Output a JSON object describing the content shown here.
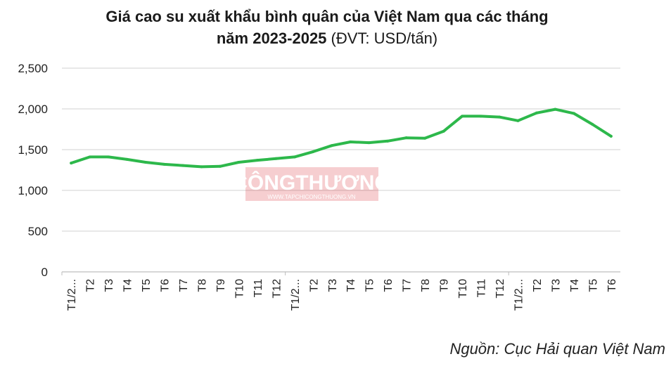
{
  "chart_data": {
    "type": "line",
    "title": "Giá cao su xuất khẩu bình quân của Việt Nam qua các tháng",
    "title_line2": "năm 2023-2025",
    "unit": "(ĐVT: USD/tấn)",
    "categories": [
      "T1/2...",
      "T2",
      "T3",
      "T4",
      "T5",
      "T6",
      "T7",
      "T8",
      "T9",
      "T10",
      "T11",
      "T12",
      "T1/2...",
      "T2",
      "T3",
      "T4",
      "T5",
      "T6",
      "T7",
      "T8",
      "T9",
      "T10",
      "T11",
      "T12",
      "T1/2...",
      "T2",
      "T3",
      "T4",
      "T5",
      "T6"
    ],
    "series": [
      {
        "values": [
          1335,
          1410,
          1410,
          1380,
          1345,
          1320,
          1305,
          1290,
          1295,
          1345,
          1370,
          1390,
          1410,
          1475,
          1550,
          1595,
          1585,
          1605,
          1645,
          1640,
          1725,
          1910,
          1910,
          1900,
          1855,
          1950,
          1995,
          1945,
          1810,
          1665
        ],
        "color": "#2db84b"
      }
    ],
    "yticks": [
      "0",
      "500",
      "1,000",
      "1,500",
      "2,000",
      "2,500"
    ],
    "ylim": [
      0,
      2500
    ],
    "grid": true,
    "legend": "none",
    "xlabel": "",
    "ylabel": ""
  },
  "watermark": {
    "text": "CÔNGTHƯƠNG",
    "subtext": "WWW.TAPCHICONGTHUONG.VN"
  },
  "source": "Nguồn: Cục Hải quan Việt Nam"
}
